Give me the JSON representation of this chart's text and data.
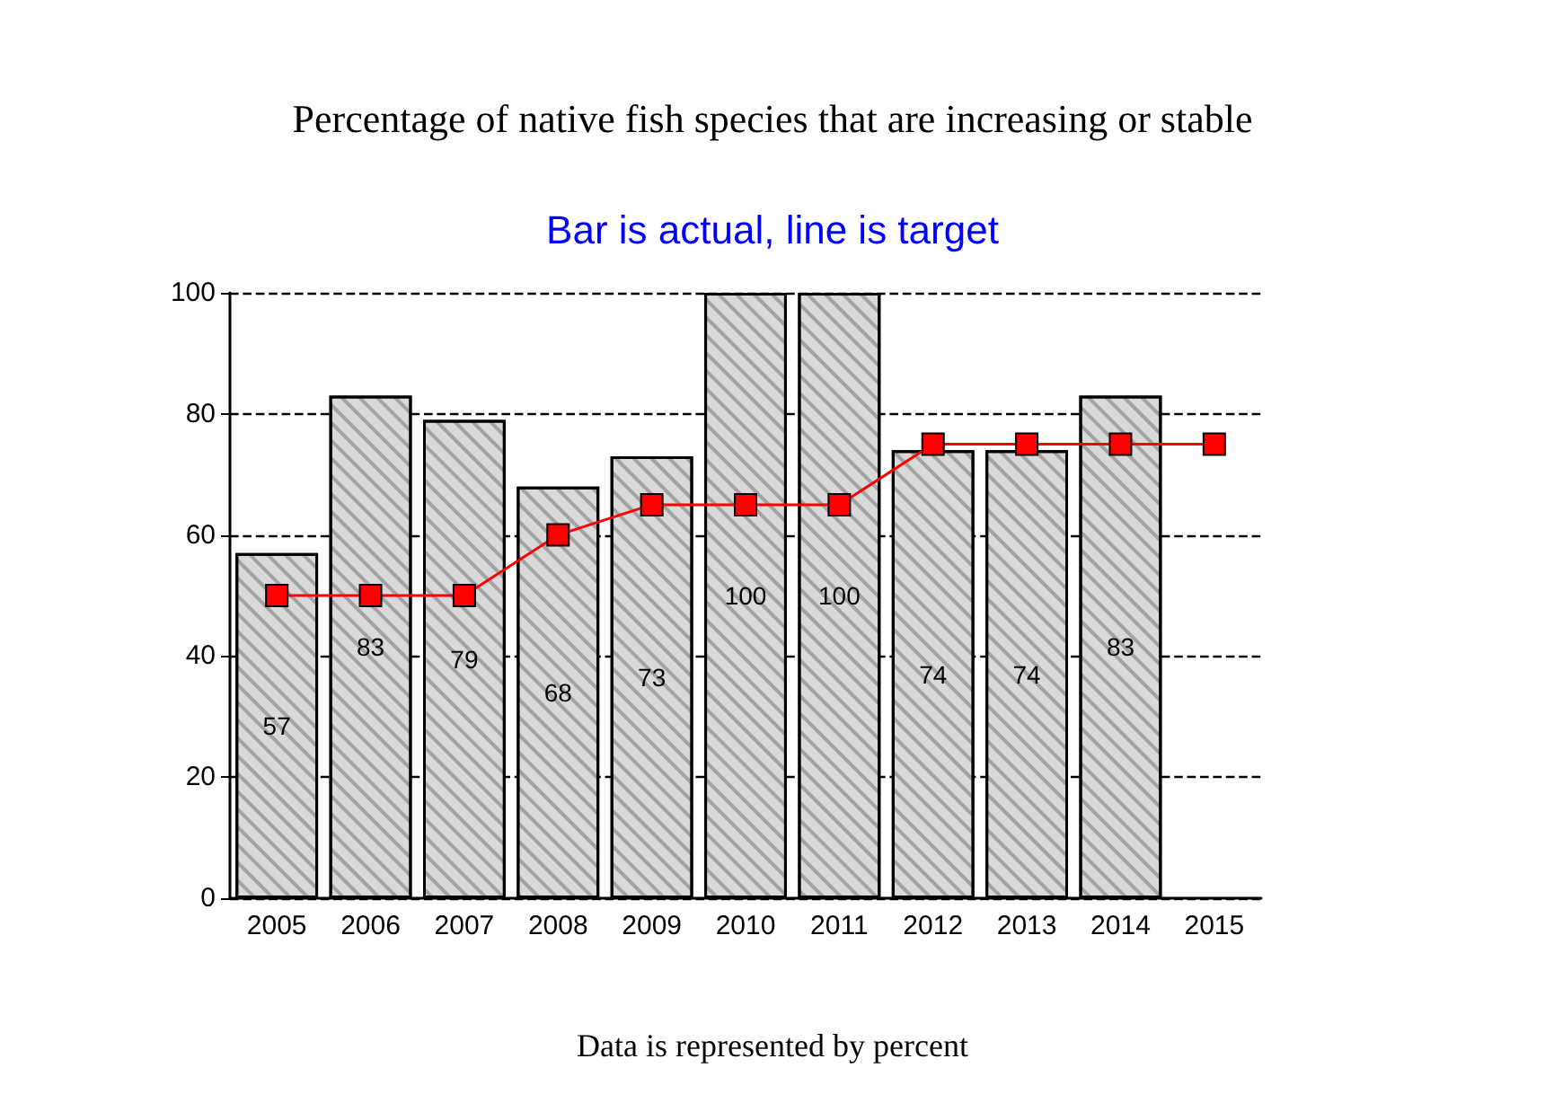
{
  "chart_data": {
    "type": "bar",
    "title": "Percentage of native fish species that are increasing or stable",
    "subtitle": "Bar is actual, line is target",
    "annotations": [
      "Data is represented by percent"
    ],
    "categories": [
      "2005",
      "2006",
      "2007",
      "2008",
      "2009",
      "2010",
      "2011",
      "2012",
      "2013",
      "2014",
      "2015"
    ],
    "series": [
      {
        "color": "#d9d9d9",
        "values": [
          57,
          83,
          79,
          68,
          73,
          100,
          100,
          74,
          74,
          83,
          null
        ],
        "value_labels": [
          "57",
          "83",
          "79",
          "68",
          "73",
          "100",
          "100",
          "74",
          "74",
          "83",
          null
        ]
      },
      {
        "type": "line",
        "color": "#ff0000",
        "marker": "square",
        "values": [
          50,
          50,
          50,
          60,
          65,
          65,
          65,
          75,
          75,
          75,
          75
        ]
      }
    ],
    "ylim": [
      0,
      100
    ],
    "yticks": [
      0,
      20,
      40,
      60,
      80,
      100
    ],
    "grid": "y"
  }
}
